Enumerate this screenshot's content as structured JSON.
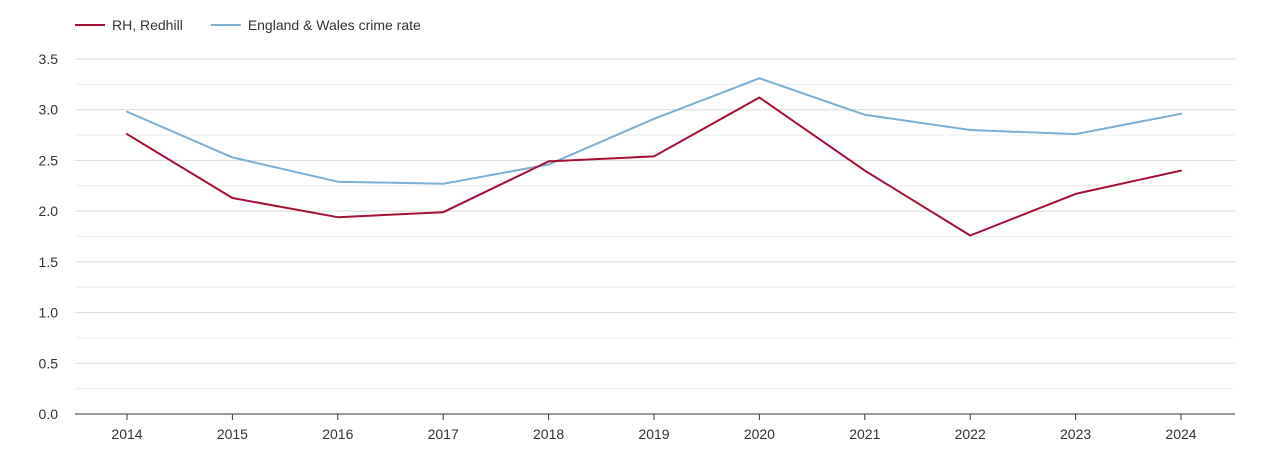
{
  "chart_data": {
    "type": "line",
    "title": "",
    "xlabel": "",
    "ylabel": "",
    "x": [
      "2014",
      "2015",
      "2016",
      "2017",
      "2018",
      "2019",
      "2020",
      "2021",
      "2022",
      "2023",
      "2024"
    ],
    "ylim": [
      0,
      3.5
    ],
    "yticks": [
      "0.0",
      "0.5",
      "1.0",
      "1.5",
      "2.0",
      "2.5",
      "3.0",
      "3.5"
    ],
    "ytick_values": [
      0,
      0.5,
      1.0,
      1.5,
      2.0,
      2.5,
      3.0,
      3.5
    ],
    "minor_gridlines": true,
    "legend_position": "top-left",
    "series": [
      {
        "name": "RH, Redhill",
        "color": "#a50f35",
        "values": [
          2.76,
          2.13,
          1.94,
          1.99,
          2.49,
          2.54,
          3.12,
          2.4,
          1.76,
          2.17,
          2.4
        ]
      },
      {
        "name": "England & Wales crime rate",
        "color": "#7bafd4",
        "values": [
          2.98,
          2.53,
          2.29,
          2.27,
          2.46,
          2.91,
          3.31,
          2.95,
          2.8,
          2.76,
          2.96
        ]
      }
    ]
  }
}
